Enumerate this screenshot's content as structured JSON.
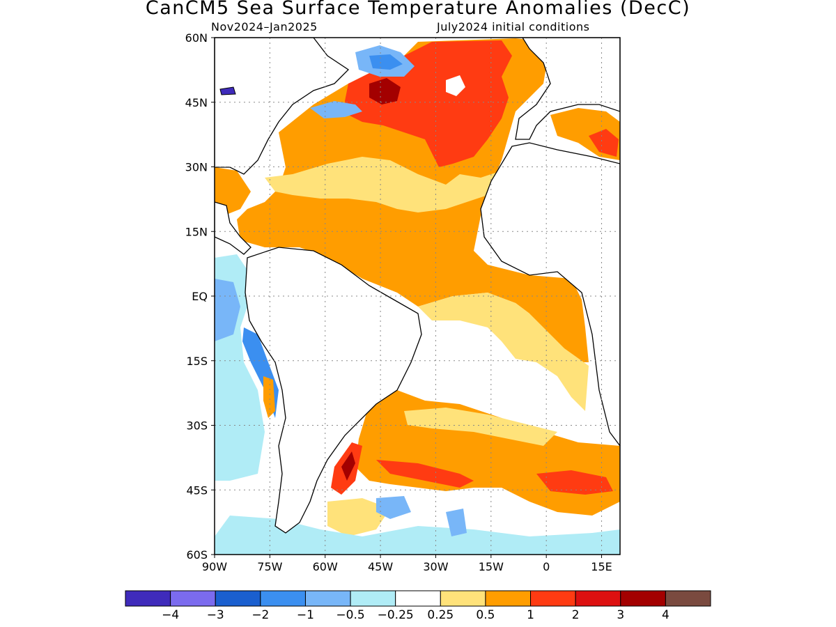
{
  "title": "CanCM5 Sea Surface Temperature Anomalies (DecC)",
  "subtitle_left": "Nov2024–Jan2025",
  "subtitle_right": "July2024 initial conditions",
  "map": {
    "lon_range": [
      -90,
      20
    ],
    "lat_range": [
      -60,
      60
    ],
    "lon_ticks": [
      "90W",
      "75W",
      "60W",
      "45W",
      "30W",
      "15W",
      "0",
      "15E"
    ],
    "lat_ticks": [
      "60N",
      "45N",
      "30N",
      "15N",
      "EQ",
      "15S",
      "30S",
      "45S",
      "60S"
    ],
    "grid": "dotted"
  },
  "colorbar": {
    "labels": [
      "−4",
      "−3",
      "−2",
      "−1",
      "−0.5",
      "−0.25",
      "0.25",
      "0.5",
      "1",
      "2",
      "3",
      "4"
    ],
    "colors": [
      "#3f2bbb",
      "#7b6bee",
      "#1a5fcf",
      "#3b8ff0",
      "#78b6f8",
      "#b0ecf6",
      "#ffffff",
      "#ffe27a",
      "#ff9d00",
      "#ff3b12",
      "#dd1010",
      "#a30000",
      "#7a4a3f"
    ]
  }
}
